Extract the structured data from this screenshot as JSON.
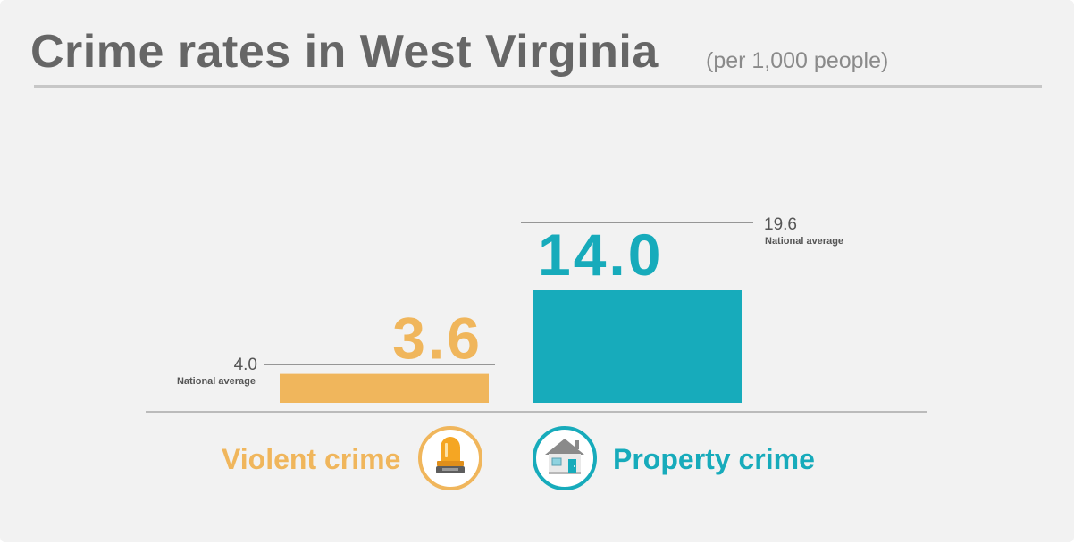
{
  "title": "Crime rates in West Virginia",
  "subtitle": "(per 1,000 people)",
  "colors": {
    "violent": "#f0b65c",
    "property": "#17abbb",
    "text_gray": "#666666",
    "line_gray": "#777777",
    "axis_gray": "#bbbbbb"
  },
  "icons": {
    "violent": "siren-icon",
    "property": "house-icon"
  },
  "chart_data": {
    "type": "bar",
    "categories": [
      "Violent crime",
      "Property crime"
    ],
    "values": [
      3.6,
      14.0
    ],
    "value_labels": [
      "3.6",
      "14.0"
    ],
    "reference": {
      "label": "National average",
      "values": [
        4.0,
        19.6
      ],
      "value_labels": [
        "4.0",
        "19.6"
      ]
    }
  }
}
